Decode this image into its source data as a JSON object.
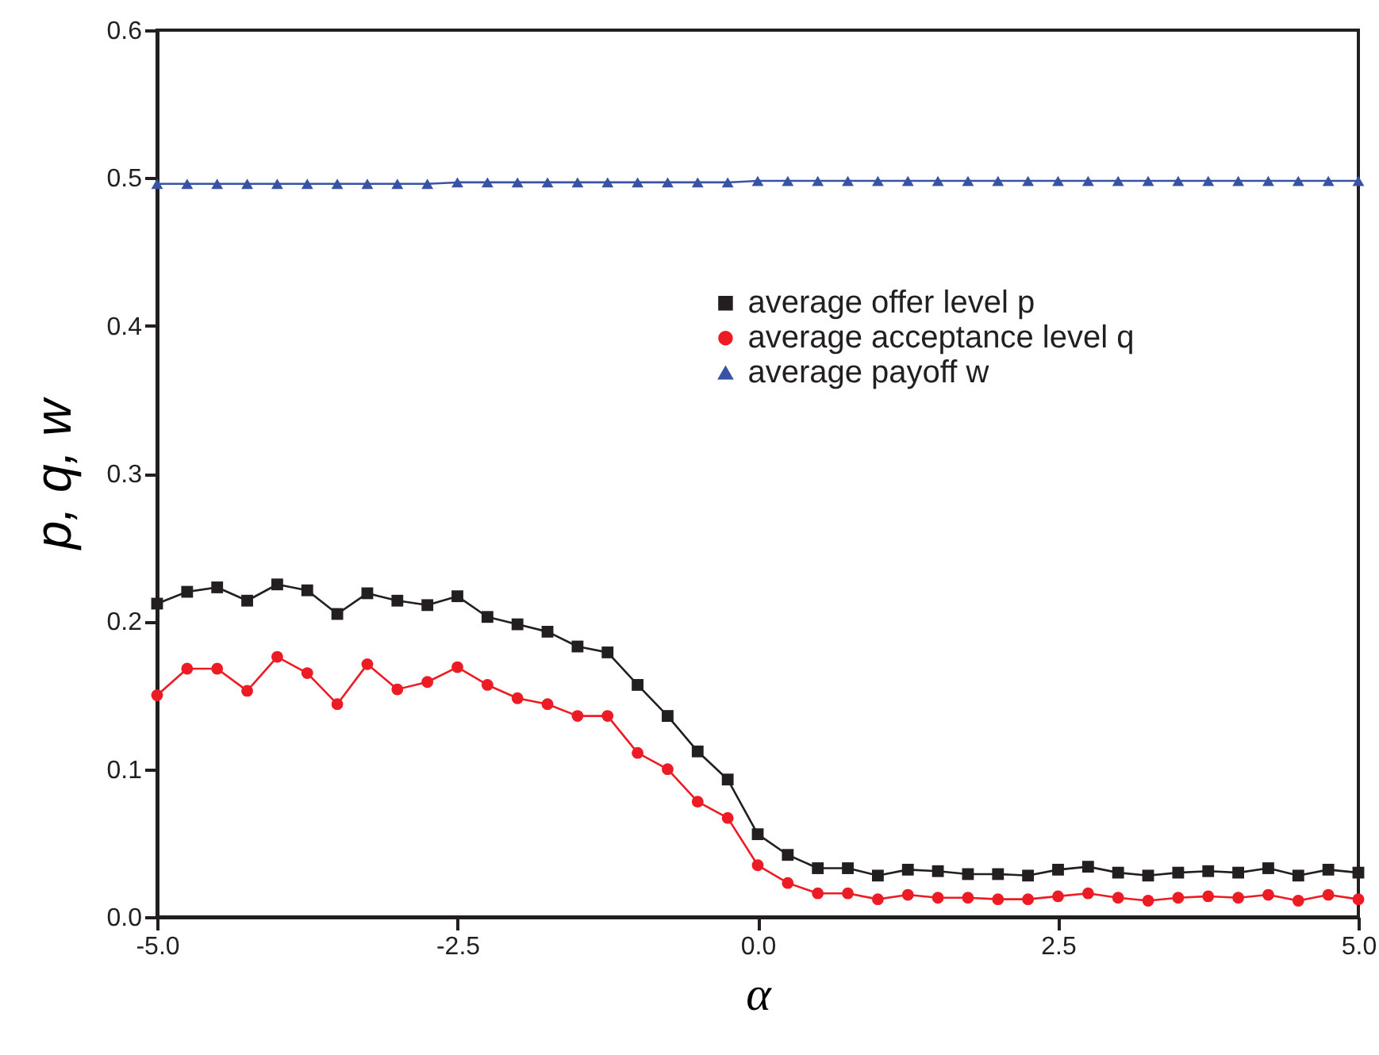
{
  "chart_data": {
    "type": "line",
    "xlabel": "α",
    "ylabel": "p, q, w",
    "x": [
      -5,
      -4.75,
      -4.5,
      -4.25,
      -4,
      -3.75,
      -3.5,
      -3.25,
      -3,
      -2.75,
      -2.5,
      -2.25,
      -2,
      -1.75,
      -1.5,
      -1.25,
      -1,
      -0.75,
      -0.5,
      -0.25,
      0,
      0.25,
      0.5,
      0.75,
      1,
      1.25,
      1.5,
      1.75,
      2,
      2.25,
      2.5,
      2.75,
      3,
      3.25,
      3.5,
      3.75,
      4,
      4.25,
      4.5,
      4.75,
      5
    ],
    "series": [
      {
        "name": "average offer level p",
        "color": "#231f20",
        "marker": "square",
        "values": [
          0.212,
          0.22,
          0.223,
          0.214,
          0.225,
          0.221,
          0.205,
          0.219,
          0.214,
          0.211,
          0.217,
          0.203,
          0.198,
          0.193,
          0.183,
          0.179,
          0.157,
          0.136,
          0.112,
          0.093,
          0.056,
          0.042,
          0.033,
          0.033,
          0.028,
          0.032,
          0.031,
          0.029,
          0.029,
          0.028,
          0.032,
          0.034,
          0.03,
          0.028,
          0.03,
          0.031,
          0.03,
          0.033,
          0.028,
          0.032,
          0.03
        ]
      },
      {
        "name": "average acceptance level q",
        "color": "#ed1c24",
        "marker": "circle",
        "values": [
          0.15,
          0.168,
          0.168,
          0.153,
          0.176,
          0.165,
          0.144,
          0.171,
          0.154,
          0.159,
          0.169,
          0.157,
          0.148,
          0.144,
          0.136,
          0.136,
          0.111,
          0.1,
          0.078,
          0.067,
          0.035,
          0.023,
          0.016,
          0.016,
          0.012,
          0.015,
          0.013,
          0.013,
          0.012,
          0.012,
          0.014,
          0.016,
          0.013,
          0.011,
          0.013,
          0.014,
          0.013,
          0.015,
          0.011,
          0.015,
          0.012
        ]
      },
      {
        "name": "average payoff w",
        "color": "#3953a4",
        "marker": "triangle",
        "values": [
          0.496,
          0.496,
          0.496,
          0.496,
          0.496,
          0.496,
          0.496,
          0.496,
          0.496,
          0.496,
          0.497,
          0.497,
          0.497,
          0.497,
          0.497,
          0.497,
          0.497,
          0.497,
          0.497,
          0.497,
          0.498,
          0.498,
          0.498,
          0.498,
          0.498,
          0.498,
          0.498,
          0.498,
          0.498,
          0.498,
          0.498,
          0.498,
          0.498,
          0.498,
          0.498,
          0.498,
          0.498,
          0.498,
          0.498,
          0.498,
          0.498
        ]
      }
    ],
    "xlim": [
      -5,
      5
    ],
    "xticks": [
      {
        "value": -5,
        "label": "-5.0"
      },
      {
        "value": -2.5,
        "label": "-2.5"
      },
      {
        "value": 0,
        "label": "0.0"
      },
      {
        "value": 2.5,
        "label": "2.5"
      },
      {
        "value": 5,
        "label": "5.0"
      }
    ],
    "ylim": [
      0,
      0.6
    ],
    "yticks": [
      {
        "value": 0,
        "label": "0.0"
      },
      0.1,
      0.2,
      0.3,
      0.4,
      0.5,
      0.6
    ],
    "grid": false,
    "legend": "top right"
  }
}
